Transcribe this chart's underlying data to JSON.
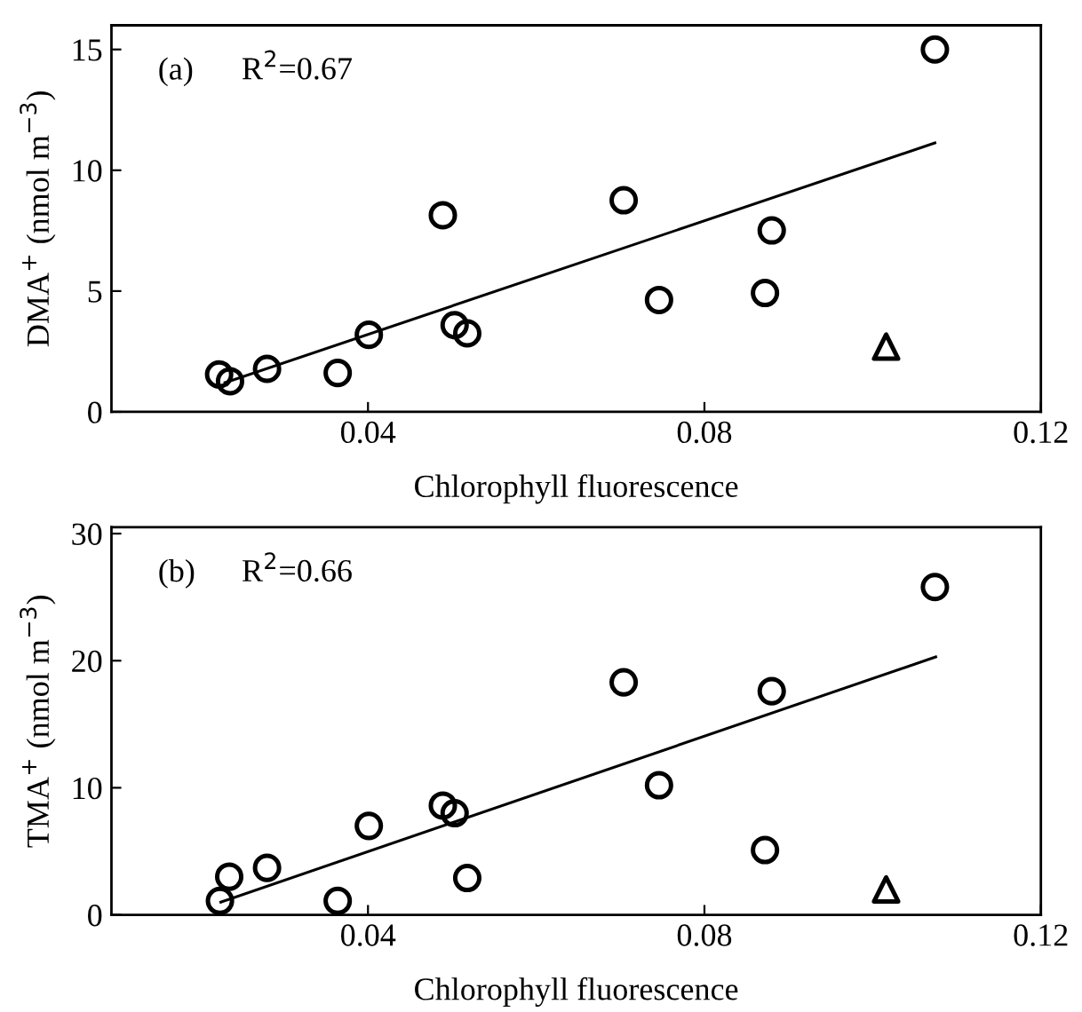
{
  "chart_data": [
    {
      "type": "scatter",
      "xlabel": "Chlorophyll fluorescence",
      "ylabel": "DMA$^{+}$ (nmol m$^{−3}$)",
      "annotations": [
        "(a)",
        "R$^{2}$=0.67"
      ],
      "xlim": [
        0.0095,
        0.12
      ],
      "xticks": [
        0.04,
        0.08,
        0.12
      ],
      "ylim": [
        0,
        16
      ],
      "yticks": [
        0,
        5,
        10,
        15
      ],
      "grid": false,
      "legend": false,
      "series": [
        {
          "marker": "circle",
          "color": "#000000",
          "x": [
            0.0223,
            0.0236,
            0.028,
            0.0364,
            0.0401,
            0.0489,
            0.0503,
            0.0518,
            0.0704,
            0.0746,
            0.0872,
            0.088,
            0.1074
          ],
          "values": [
            1.55,
            1.27,
            1.78,
            1.61,
            3.19,
            8.14,
            3.59,
            3.25,
            8.76,
            4.63,
            4.92,
            7.51,
            15.0
          ]
        },
        {
          "marker": "triangle",
          "color": "#000000",
          "x": [
            0.1016
          ],
          "values": [
            2.7
          ]
        },
        {
          "type": "line",
          "marker": "none",
          "line_style": "solid",
          "color": "#000000",
          "x": [
            0.023,
            0.1074
          ],
          "values": [
            1.21,
            11.13
          ]
        }
      ]
    },
    {
      "type": "scatter",
      "xlabel": "Chlorophyll fluorescence",
      "ylabel": "TMA$^{+}$ (nmol m$^{−3}$)",
      "annotations": [
        "(b)",
        "R$^{2}$=0.66"
      ],
      "xlim": [
        0.0095,
        0.12
      ],
      "xticks": [
        0.04,
        0.08,
        0.12
      ],
      "ylim": [
        0,
        30.5
      ],
      "yticks": [
        0,
        10,
        20,
        30
      ],
      "grid": false,
      "legend": false,
      "series": [
        {
          "marker": "circle",
          "color": "#000000",
          "x": [
            0.0224,
            0.0235,
            0.028,
            0.0364,
            0.0401,
            0.0489,
            0.0503,
            0.0518,
            0.0704,
            0.0746,
            0.0872,
            0.088,
            0.1074
          ],
          "values": [
            1.1,
            3.0,
            3.7,
            1.1,
            7.0,
            8.6,
            8.0,
            2.9,
            18.3,
            10.2,
            5.1,
            17.6,
            25.8
          ]
        },
        {
          "marker": "triangle",
          "color": "#000000",
          "x": [
            0.1016
          ],
          "values": [
            2.0
          ]
        },
        {
          "type": "line",
          "marker": "none",
          "line_style": "solid",
          "color": "#000000",
          "x": [
            0.0225,
            0.1075
          ],
          "values": [
            1.0,
            20.3
          ]
        }
      ]
    }
  ]
}
